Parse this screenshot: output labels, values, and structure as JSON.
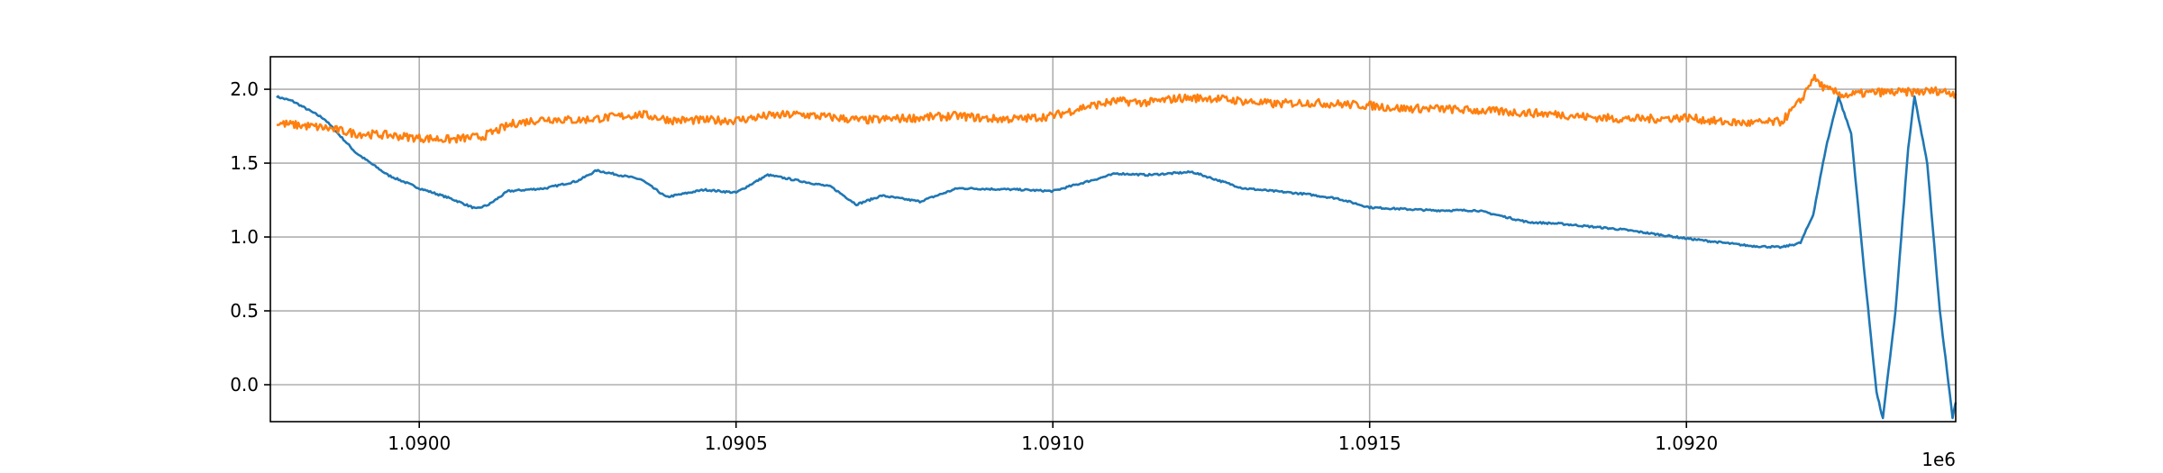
{
  "chart_data": {
    "type": "line",
    "title": "",
    "xlabel": "",
    "ylabel": "",
    "x_offset_label": "1e6",
    "xlim": [
      1.089765,
      1.092425
    ],
    "ylim": [
      -0.25,
      2.22
    ],
    "grid": true,
    "legend": "none",
    "x_ticks": [
      1.09,
      1.0905,
      1.091,
      1.0915,
      1.092
    ],
    "x_tick_labels": [
      "1.0900",
      "1.0905",
      "1.0910",
      "1.0915",
      "1.0920"
    ],
    "y_ticks": [
      0.0,
      0.5,
      1.0,
      1.5,
      2.0
    ],
    "y_tick_labels": [
      "0.0",
      "0.5",
      "1.0",
      "1.5",
      "2.0"
    ],
    "series": [
      {
        "color": "#1f77b4",
        "points": [
          [
            1.089775,
            1.95
          ],
          [
            1.0898,
            1.92
          ],
          [
            1.08985,
            1.8
          ],
          [
            1.0899,
            1.57
          ],
          [
            1.08995,
            1.42
          ],
          [
            1.09,
            1.33
          ],
          [
            1.09005,
            1.26
          ],
          [
            1.09009,
            1.19
          ],
          [
            1.09011,
            1.22
          ],
          [
            1.09014,
            1.31
          ],
          [
            1.0902,
            1.33
          ],
          [
            1.09025,
            1.38
          ],
          [
            1.09028,
            1.45
          ],
          [
            1.09035,
            1.39
          ],
          [
            1.09039,
            1.27
          ],
          [
            1.09045,
            1.32
          ],
          [
            1.0905,
            1.3
          ],
          [
            1.09055,
            1.42
          ],
          [
            1.0906,
            1.38
          ],
          [
            1.09065,
            1.34
          ],
          [
            1.09069,
            1.22
          ],
          [
            1.09073,
            1.28
          ],
          [
            1.09079,
            1.24
          ],
          [
            1.09085,
            1.33
          ],
          [
            1.09095,
            1.32
          ],
          [
            1.091,
            1.31
          ],
          [
            1.09105,
            1.37
          ],
          [
            1.0911,
            1.43
          ],
          [
            1.09115,
            1.42
          ],
          [
            1.09122,
            1.44
          ],
          [
            1.0913,
            1.33
          ],
          [
            1.0914,
            1.29
          ],
          [
            1.09145,
            1.26
          ],
          [
            1.0915,
            1.2
          ],
          [
            1.0916,
            1.18
          ],
          [
            1.09167,
            1.18
          ],
          [
            1.09175,
            1.1
          ],
          [
            1.0918,
            1.09
          ],
          [
            1.0919,
            1.05
          ],
          [
            1.092,
            0.99
          ],
          [
            1.0921,
            0.94
          ],
          [
            1.09215,
            0.93
          ],
          [
            1.09218,
            0.96
          ],
          [
            1.0922,
            1.15
          ],
          [
            1.09222,
            1.6
          ],
          [
            1.09224,
            1.95
          ],
          [
            1.09226,
            1.7
          ],
          [
            1.09228,
            0.8
          ],
          [
            1.0923,
            -0.05
          ],
          [
            1.09231,
            -0.23
          ],
          [
            1.09233,
            0.5
          ],
          [
            1.09235,
            1.6
          ],
          [
            1.09236,
            1.95
          ],
          [
            1.09238,
            1.5
          ],
          [
            1.0924,
            0.5
          ],
          [
            1.09242,
            -0.22
          ],
          [
            1.092425,
            -0.12
          ]
        ]
      },
      {
        "color": "#ff7f0e",
        "points": [
          [
            1.089775,
            1.77
          ],
          [
            1.08985,
            1.74
          ],
          [
            1.0899,
            1.7
          ],
          [
            1.08995,
            1.69
          ],
          [
            1.09,
            1.67
          ],
          [
            1.09005,
            1.66
          ],
          [
            1.0901,
            1.68
          ],
          [
            1.09015,
            1.77
          ],
          [
            1.0902,
            1.8
          ],
          [
            1.09025,
            1.79
          ],
          [
            1.0903,
            1.81
          ],
          [
            1.09035,
            1.83
          ],
          [
            1.0904,
            1.79
          ],
          [
            1.09045,
            1.79
          ],
          [
            1.0905,
            1.79
          ],
          [
            1.09055,
            1.82
          ],
          [
            1.0906,
            1.83
          ],
          [
            1.09065,
            1.81
          ],
          [
            1.0907,
            1.79
          ],
          [
            1.09075,
            1.8
          ],
          [
            1.0908,
            1.81
          ],
          [
            1.09085,
            1.82
          ],
          [
            1.0909,
            1.8
          ],
          [
            1.09095,
            1.8
          ],
          [
            1.091,
            1.82
          ],
          [
            1.09105,
            1.88
          ],
          [
            1.0911,
            1.92
          ],
          [
            1.09115,
            1.91
          ],
          [
            1.0912,
            1.94
          ],
          [
            1.09125,
            1.94
          ],
          [
            1.0913,
            1.92
          ],
          [
            1.09135,
            1.9
          ],
          [
            1.0914,
            1.91
          ],
          [
            1.09145,
            1.9
          ],
          [
            1.0915,
            1.89
          ],
          [
            1.09155,
            1.87
          ],
          [
            1.0916,
            1.87
          ],
          [
            1.09165,
            1.86
          ],
          [
            1.0917,
            1.85
          ],
          [
            1.09175,
            1.84
          ],
          [
            1.0918,
            1.83
          ],
          [
            1.09185,
            1.81
          ],
          [
            1.0919,
            1.8
          ],
          [
            1.09195,
            1.8
          ],
          [
            1.092,
            1.81
          ],
          [
            1.09205,
            1.78
          ],
          [
            1.0921,
            1.77
          ],
          [
            1.09215,
            1.78
          ],
          [
            1.09218,
            1.92
          ],
          [
            1.0922,
            2.08
          ],
          [
            1.09222,
            2.0
          ],
          [
            1.09225,
            1.96
          ],
          [
            1.0923,
            1.98
          ],
          [
            1.09235,
            1.98
          ],
          [
            1.0924,
            1.99
          ],
          [
            1.092425,
            1.97
          ]
        ]
      }
    ]
  }
}
